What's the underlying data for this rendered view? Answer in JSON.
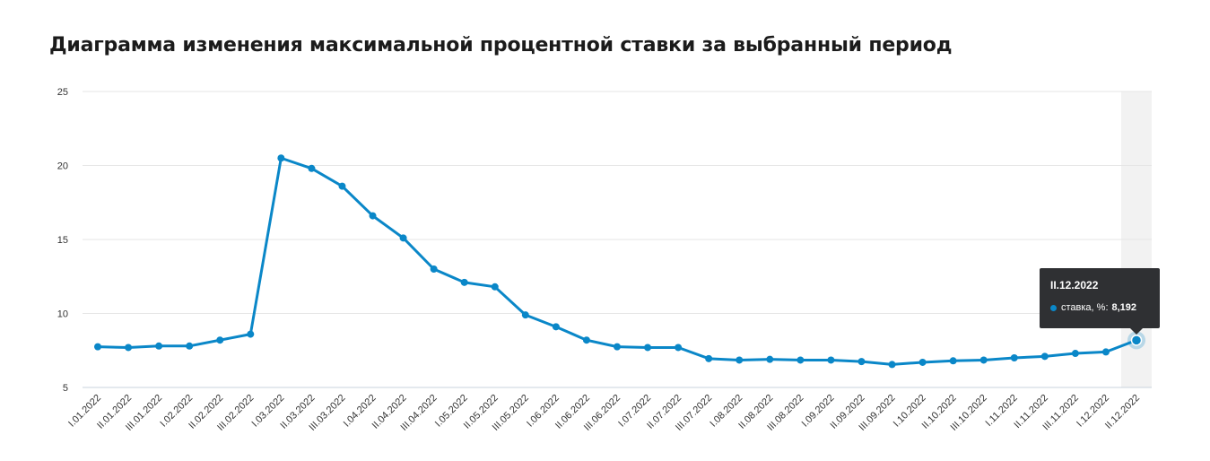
{
  "chart_data": {
    "type": "line",
    "title": "Диаграмма изменения максимальной процентной ставки за выбранный период",
    "xlabel": "",
    "ylabel": "",
    "ylim": [
      5,
      25
    ],
    "yticks": [
      5,
      10,
      15,
      20,
      25
    ],
    "grid": true,
    "categories": [
      "I.01.2022",
      "II.01.2022",
      "III.01.2022",
      "I.02.2022",
      "II.02.2022",
      "III.02.2022",
      "I.03.2022",
      "II.03.2022",
      "III.03.2022",
      "I.04.2022",
      "II.04.2022",
      "III.04.2022",
      "I.05.2022",
      "II.05.2022",
      "III.05.2022",
      "I.06.2022",
      "II.06.2022",
      "III.06.2022",
      "I.07.2022",
      "II.07.2022",
      "III.07.2022",
      "I.08.2022",
      "II.08.2022",
      "III.08.2022",
      "I.09.2022",
      "II.09.2022",
      "III.09.2022",
      "I.10.2022",
      "II.10.2022",
      "III.10.2022",
      "I.11.2022",
      "II.11.2022",
      "III.11.2022",
      "I.12.2022",
      "II.12.2022"
    ],
    "series": [
      {
        "name": "ставка, %",
        "color": "#0a87c8",
        "values": [
          7.75,
          7.7,
          7.8,
          7.8,
          8.2,
          8.6,
          20.5,
          19.8,
          18.6,
          16.6,
          15.1,
          13.0,
          12.1,
          11.8,
          9.9,
          9.1,
          8.2,
          7.75,
          7.7,
          7.7,
          6.95,
          6.85,
          6.9,
          6.85,
          6.85,
          6.75,
          6.55,
          6.7,
          6.8,
          6.85,
          7.0,
          7.1,
          7.3,
          7.4,
          8.192
        ]
      }
    ],
    "tooltip": {
      "title": "II.12.2022",
      "series_label": "ставка, %:",
      "value": "8,192"
    }
  }
}
